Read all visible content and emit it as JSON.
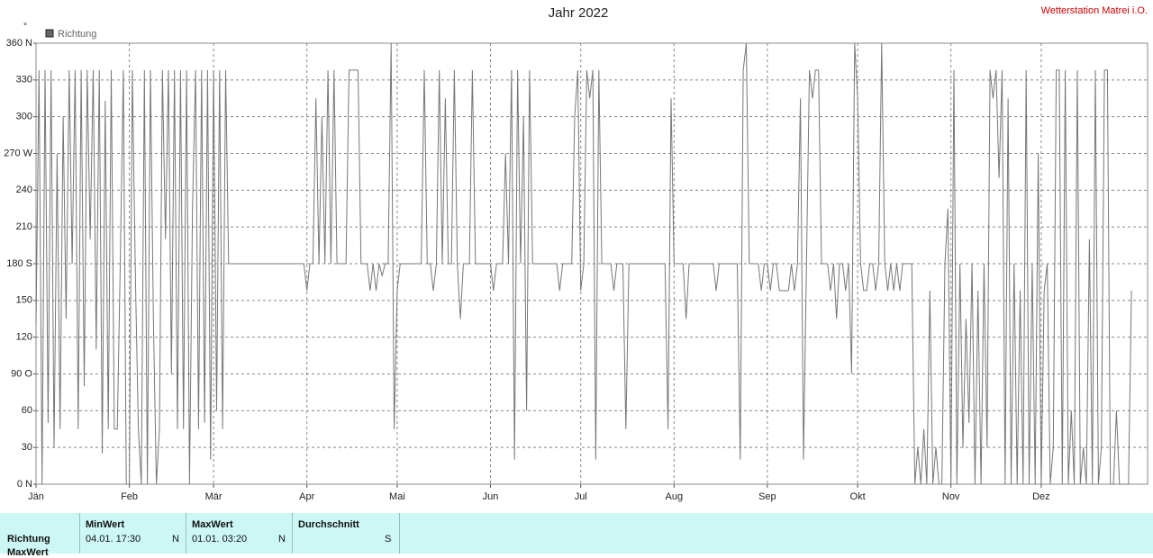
{
  "chart_data": {
    "type": "line",
    "title": "Jahr 2022",
    "station": "Wetterstation Matrei i.O.",
    "y_unit": "°",
    "categories": [
      "Jän",
      null,
      null,
      null,
      null,
      null,
      null,
      null,
      null,
      null,
      null,
      null,
      null,
      null,
      null,
      null,
      null,
      null,
      null,
      null,
      null,
      null,
      null,
      null,
      null,
      null,
      null,
      null,
      null,
      null,
      null,
      "Feb",
      null,
      null,
      null,
      null,
      null,
      null,
      null,
      null,
      null,
      null,
      null,
      null,
      null,
      null,
      null,
      null,
      null,
      null,
      null,
      null,
      null,
      null,
      null,
      null,
      null,
      null,
      null,
      "Mär",
      null,
      null,
      null,
      null,
      null,
      null,
      null,
      null,
      null,
      null,
      null,
      null,
      null,
      null,
      null,
      null,
      null,
      null,
      null,
      null,
      null,
      null,
      null,
      null,
      null,
      null,
      null,
      null,
      null,
      null,
      "Apr",
      null,
      null,
      null,
      null,
      null,
      null,
      null,
      null,
      null,
      null,
      null,
      null,
      null,
      null,
      null,
      null,
      null,
      null,
      null,
      null,
      null,
      null,
      null,
      null,
      null,
      null,
      null,
      null,
      null,
      "Mai",
      null,
      null,
      null,
      null,
      null,
      null,
      null,
      null,
      null,
      null,
      null,
      null,
      null,
      null,
      null,
      null,
      null,
      null,
      null,
      null,
      null,
      null,
      null,
      null,
      null,
      null,
      null,
      null,
      null,
      null,
      "Jun",
      null,
      null,
      null,
      null,
      null,
      null,
      null,
      null,
      null,
      null,
      null,
      null,
      null,
      null,
      null,
      null,
      null,
      null,
      null,
      null,
      null,
      null,
      null,
      null,
      null,
      null,
      null,
      null,
      null,
      "Jul",
      null,
      null,
      null,
      null,
      null,
      null,
      null,
      null,
      null,
      null,
      null,
      null,
      null,
      null,
      null,
      null,
      null,
      null,
      null,
      null,
      null,
      null,
      null,
      null,
      null,
      null,
      null,
      null,
      null,
      null,
      "Aug",
      null,
      null,
      null,
      null,
      null,
      null,
      null,
      null,
      null,
      null,
      null,
      null,
      null,
      null,
      null,
      null,
      null,
      null,
      null,
      null,
      null,
      null,
      null,
      null,
      null,
      null,
      null,
      null,
      null,
      null,
      "Sep",
      null,
      null,
      null,
      null,
      null,
      null,
      null,
      null,
      null,
      null,
      null,
      null,
      null,
      null,
      null,
      null,
      null,
      null,
      null,
      null,
      null,
      null,
      null,
      null,
      null,
      null,
      null,
      null,
      null,
      "Okt",
      null,
      null,
      null,
      null,
      null,
      null,
      null,
      null,
      null,
      null,
      null,
      null,
      null,
      null,
      null,
      null,
      null,
      null,
      null,
      null,
      null,
      null,
      null,
      null,
      null,
      null,
      null,
      null,
      null,
      null,
      "Nov",
      null,
      null,
      null,
      null,
      null,
      null,
      null,
      null,
      null,
      null,
      null,
      null,
      null,
      null,
      null,
      null,
      null,
      null,
      null,
      null,
      null,
      null,
      null,
      null,
      null,
      null,
      null,
      null,
      null,
      "Dez",
      null,
      null,
      null,
      null,
      null,
      null,
      null,
      null,
      null,
      null,
      null,
      null,
      null,
      null,
      null,
      null,
      null,
      null,
      null,
      null,
      null,
      null,
      null,
      null,
      null,
      null,
      null,
      null,
      null,
      null
    ],
    "series": [
      {
        "name": "Richtung",
        "color": "#777777",
        "values": [
          130,
          338,
          0,
          338,
          50,
          338,
          30,
          270,
          45,
          300,
          135,
          338,
          180,
          338,
          45,
          338,
          80,
          338,
          200,
          338,
          110,
          338,
          25,
          313,
          45,
          338,
          45,
          45,
          180,
          338,
          0,
          0,
          338,
          170,
          45,
          0,
          338,
          0,
          338,
          135,
          0,
          45,
          338,
          200,
          338,
          90,
          338,
          45,
          338,
          45,
          338,
          0,
          225,
          338,
          45,
          338,
          50,
          338,
          20,
          338,
          60,
          338,
          45,
          338,
          180,
          180,
          180,
          180,
          180,
          180,
          180,
          180,
          180,
          180,
          180,
          180,
          180,
          180,
          180,
          180,
          180,
          180,
          180,
          180,
          180,
          180,
          180,
          180,
          180,
          180,
          158,
          180,
          180,
          315,
          180,
          300,
          180,
          338,
          180,
          338,
          180,
          180,
          180,
          180,
          338,
          338,
          338,
          338,
          180,
          180,
          180,
          158,
          180,
          158,
          180,
          170,
          180,
          180,
          360,
          45,
          158,
          180,
          180,
          180,
          180,
          180,
          180,
          180,
          180,
          338,
          180,
          180,
          158,
          180,
          338,
          180,
          315,
          180,
          180,
          338,
          180,
          135,
          180,
          180,
          180,
          338,
          180,
          180,
          180,
          180,
          180,
          180,
          158,
          180,
          180,
          180,
          270,
          180,
          338,
          20,
          338,
          180,
          300,
          60,
          338,
          180,
          180,
          180,
          180,
          180,
          180,
          180,
          180,
          180,
          158,
          180,
          180,
          180,
          180,
          300,
          338,
          158,
          180,
          338,
          315,
          338,
          20,
          338,
          180,
          180,
          180,
          180,
          158,
          180,
          180,
          180,
          45,
          180,
          180,
          180,
          180,
          180,
          180,
          180,
          180,
          180,
          180,
          180,
          180,
          180,
          45,
          315,
          180,
          180,
          180,
          180,
          135,
          180,
          180,
          180,
          180,
          180,
          180,
          180,
          180,
          180,
          158,
          180,
          180,
          180,
          180,
          180,
          180,
          180,
          20,
          338,
          360,
          180,
          180,
          180,
          180,
          158,
          180,
          180,
          158,
          180,
          180,
          158,
          158,
          158,
          158,
          180,
          158,
          180,
          315,
          20,
          180,
          338,
          315,
          338,
          338,
          180,
          180,
          180,
          158,
          180,
          135,
          180,
          180,
          158,
          180,
          90,
          360,
          315,
          180,
          158,
          158,
          180,
          180,
          158,
          180,
          360,
          180,
          158,
          180,
          158,
          180,
          158,
          180,
          180,
          180,
          180,
          0,
          30,
          0,
          45,
          0,
          158,
          0,
          30,
          0,
          0,
          180,
          225,
          0,
          338,
          0,
          180,
          30,
          135,
          50,
          180,
          0,
          158,
          0,
          180,
          30,
          338,
          315,
          338,
          250,
          338,
          0,
          315,
          0,
          180,
          0,
          158,
          0,
          338,
          0,
          180,
          0,
          270,
          0,
          158,
          180,
          0,
          30,
          338,
          338,
          0,
          338,
          0,
          60,
          0,
          338,
          0,
          30,
          0,
          200,
          0,
          338,
          0,
          30,
          338,
          338,
          0,
          0,
          60,
          0,
          0,
          0,
          0,
          158
        ]
      }
    ],
    "ylim": [
      0,
      360
    ],
    "yticks": [
      {
        "value": 0,
        "label": "0 N"
      },
      30,
      60,
      {
        "value": 90,
        "label": "90 O"
      },
      120,
      150,
      {
        "value": 180,
        "label": "180 S"
      },
      210,
      240,
      {
        "value": 270,
        "label": "270 W"
      },
      300,
      330,
      {
        "value": 360,
        "label": "360 N"
      }
    ],
    "grid": true,
    "legend": "top-left"
  },
  "stats_table": {
    "row_label": "Richtung",
    "next_row_label": "MaxWert",
    "columns": [
      {
        "header": "MinWert",
        "time": "04.01.  17:30",
        "dir": "N"
      },
      {
        "header": "MaxWert",
        "time": "01.01.  03:20",
        "dir": "N"
      },
      {
        "header": "Durchschnitt",
        "dir": "S"
      }
    ]
  }
}
